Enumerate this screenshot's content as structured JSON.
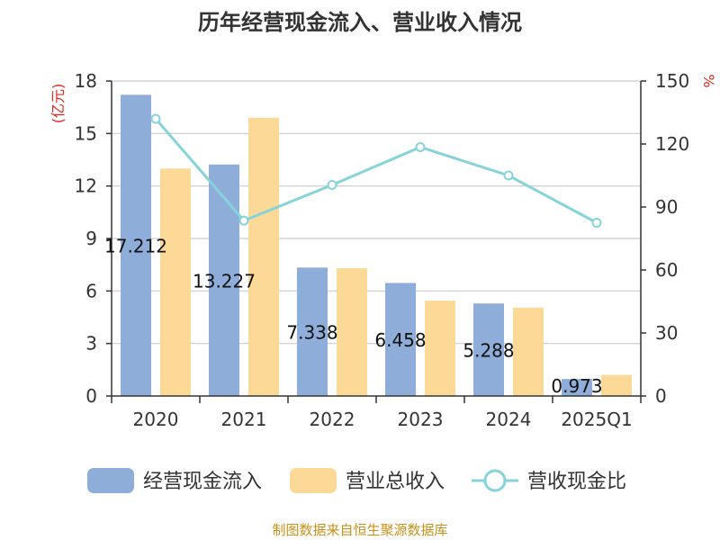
{
  "title": "历年经营现金流入、营业收入情况",
  "source": "制图数据来自恒生聚源数据库",
  "chart_data": {
    "type": "bar",
    "title": "历年经营现金流入、营业收入情况",
    "categories": [
      "2020",
      "2021",
      "2022",
      "2023",
      "2024",
      "2025Q1"
    ],
    "y_left": {
      "unit": "(亿元)",
      "ylim": [
        0,
        18
      ],
      "ticks": [
        "0",
        "3",
        "6",
        "9",
        "12",
        "15",
        "18"
      ]
    },
    "y_right": {
      "unit": "%",
      "ylim": [
        0,
        150
      ],
      "ticks": [
        "0",
        "30",
        "60",
        "90",
        "120",
        "150"
      ]
    },
    "series": [
      {
        "name": "经营现金流入",
        "type": "bar",
        "axis": "left",
        "color": "#8eadd9",
        "values": [
          17.212,
          13.227,
          7.338,
          6.458,
          5.288,
          0.973
        ],
        "labels": [
          "17.212",
          "13.227",
          "7.338",
          "6.458",
          "5.288",
          "0.973"
        ]
      },
      {
        "name": "营业总收入",
        "type": "bar",
        "axis": "left",
        "color": "#fdd998",
        "values": [
          13.0,
          15.9,
          7.3,
          5.45,
          5.05,
          1.2
        ]
      },
      {
        "name": "营收现金比",
        "type": "line",
        "axis": "right",
        "color": "#86d3da",
        "values": [
          132,
          83.5,
          100.5,
          118.5,
          105,
          82.5
        ]
      }
    ],
    "grid": true,
    "legend": "bottom"
  }
}
